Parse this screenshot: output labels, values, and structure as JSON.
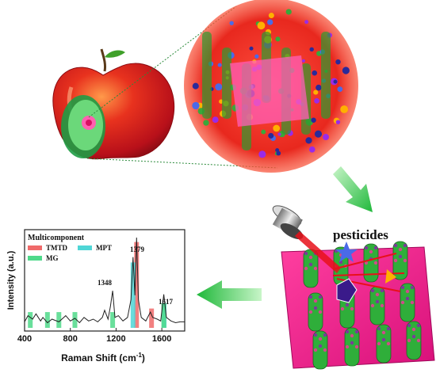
{
  "label_pesticides": "pesticides",
  "chart": {
    "legend_title": "Multicomponent",
    "legend": [
      {
        "name": "TMTD",
        "color": "#f06a6a"
      },
      {
        "name": "MPT",
        "color": "#4fd6d6"
      },
      {
        "name": "MG",
        "color": "#4fd98a"
      }
    ],
    "peak_labels": [
      "1379",
      "1348",
      "1617"
    ],
    "xlabel": "Raman Shift (cm",
    "xlabel_sup": "-1",
    "xlabel_end": ")",
    "ylabel": "Intensity (a.u.)",
    "xticks": [
      "400",
      "800",
      "1200",
      "1600"
    ]
  },
  "chart_data": {
    "type": "line",
    "xlabel": "Raman Shift (cm-1)",
    "ylabel": "Intensity (a.u.)",
    "xlim": [
      400,
      1800
    ],
    "xticks": [
      400,
      800,
      1200,
      1600
    ],
    "series": [
      {
        "name": "Multicomponent",
        "color": "#222222",
        "x": [
          400,
          430,
          470,
          500,
          540,
          560,
          600,
          640,
          700,
          760,
          800,
          840,
          880,
          920,
          960,
          1000,
          1040,
          1080,
          1100,
          1130,
          1150,
          1170,
          1190,
          1220,
          1260,
          1300,
          1330,
          1348,
          1365,
          1379,
          1395,
          1420,
          1460,
          1500,
          1520,
          1560,
          1590,
          1617,
          1640,
          1680,
          1720,
          1760,
          1800
        ],
        "y": [
          0.05,
          0.12,
          0.08,
          0.14,
          0.06,
          0.1,
          0.04,
          0.08,
          0.05,
          0.12,
          0.06,
          0.09,
          0.04,
          0.1,
          0.06,
          0.08,
          0.05,
          0.1,
          0.18,
          0.08,
          0.22,
          0.4,
          0.1,
          0.12,
          0.06,
          0.1,
          0.3,
          0.78,
          0.35,
          1.0,
          0.3,
          0.1,
          0.06,
          0.16,
          0.1,
          0.08,
          0.06,
          0.36,
          0.1,
          0.06,
          0.04,
          0.05,
          0.05
        ]
      }
    ],
    "bands": [
      {
        "series": "TMTD",
        "x": [
          1379,
          1510
        ]
      },
      {
        "series": "MPT",
        "x": [
          1348,
          1620
        ]
      },
      {
        "series": "MG",
        "x": [
          450,
          600,
          700,
          840,
          1170,
          1617
        ]
      }
    ]
  }
}
